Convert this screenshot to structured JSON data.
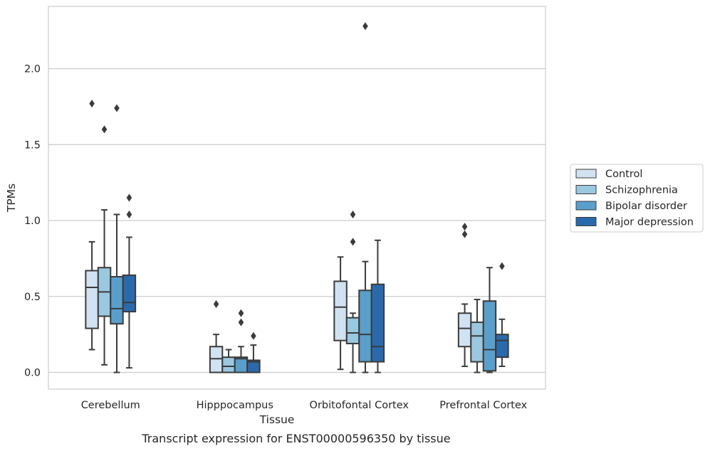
{
  "caption": "Transcript expression for ENST00000596350 by tissue",
  "chart_data": {
    "type": "box",
    "xlabel": "Tissue",
    "ylabel": "TPMs",
    "ylim": [
      -0.11,
      2.41
    ],
    "yticks": [
      0.0,
      0.5,
      1.0,
      1.5,
      2.0
    ],
    "ytick_labels": [
      "0.0",
      "0.5",
      "1.0",
      "1.5",
      "2.0"
    ],
    "grid": "horizontal",
    "categories": [
      "Cerebellum",
      "Hipppocampus",
      "Orbitofontal Cortex",
      "Prefrontal Cortex"
    ],
    "legend_position": "right",
    "series": [
      {
        "name": "Control",
        "color": "#d1e2f2",
        "boxes": [
          {
            "whisker_low": 0.15,
            "q1": 0.29,
            "median": 0.56,
            "q3": 0.67,
            "whisker_high": 0.86,
            "outliers": [
              1.77
            ]
          },
          {
            "whisker_low": 0.0,
            "q1": 0.0,
            "median": 0.09,
            "q3": 0.17,
            "whisker_high": 0.25,
            "outliers": [
              0.45
            ]
          },
          {
            "whisker_low": 0.02,
            "q1": 0.21,
            "median": 0.43,
            "q3": 0.6,
            "whisker_high": 0.76,
            "outliers": []
          },
          {
            "whisker_low": 0.04,
            "q1": 0.17,
            "median": 0.29,
            "q3": 0.39,
            "whisker_high": 0.45,
            "outliers": [
              0.91,
              0.96
            ]
          }
        ]
      },
      {
        "name": "Schizophrenia",
        "color": "#9ac8e0",
        "boxes": [
          {
            "whisker_low": 0.05,
            "q1": 0.37,
            "median": 0.53,
            "q3": 0.69,
            "whisker_high": 1.07,
            "outliers": [
              1.6
            ]
          },
          {
            "whisker_low": 0.0,
            "q1": 0.0,
            "median": 0.04,
            "q3": 0.1,
            "whisker_high": 0.15,
            "outliers": []
          },
          {
            "whisker_low": 0.0,
            "q1": 0.19,
            "median": 0.26,
            "q3": 0.36,
            "whisker_high": 0.39,
            "outliers": [
              0.86,
              1.04
            ]
          },
          {
            "whisker_low": 0.0,
            "q1": 0.07,
            "median": 0.24,
            "q3": 0.33,
            "whisker_high": 0.48,
            "outliers": []
          }
        ]
      },
      {
        "name": "Bipolar disorder",
        "color": "#5a9fcc",
        "boxes": [
          {
            "whisker_low": 0.0,
            "q1": 0.32,
            "median": 0.42,
            "q3": 0.63,
            "whisker_high": 1.04,
            "outliers": [
              1.74
            ]
          },
          {
            "whisker_low": 0.0,
            "q1": 0.0,
            "median": 0.09,
            "q3": 0.1,
            "whisker_high": 0.17,
            "outliers": [
              0.33,
              0.39
            ]
          },
          {
            "whisker_low": 0.0,
            "q1": 0.07,
            "median": 0.25,
            "q3": 0.54,
            "whisker_high": 0.73,
            "outliers": [
              2.28
            ]
          },
          {
            "whisker_low": 0.0,
            "q1": 0.01,
            "median": 0.15,
            "q3": 0.47,
            "whisker_high": 0.69,
            "outliers": []
          }
        ]
      },
      {
        "name": "Major depression",
        "color": "#2a6aac",
        "boxes": [
          {
            "whisker_low": 0.03,
            "q1": 0.4,
            "median": 0.46,
            "q3": 0.64,
            "whisker_high": 0.89,
            "outliers": [
              1.04,
              1.15
            ]
          },
          {
            "whisker_low": 0.0,
            "q1": 0.0,
            "median": 0.07,
            "q3": 0.08,
            "whisker_high": 0.18,
            "outliers": [
              0.24
            ]
          },
          {
            "whisker_low": 0.0,
            "q1": 0.07,
            "median": 0.17,
            "q3": 0.58,
            "whisker_high": 0.87,
            "outliers": []
          },
          {
            "whisker_low": 0.04,
            "q1": 0.1,
            "median": 0.21,
            "q3": 0.25,
            "whisker_high": 0.35,
            "outliers": [
              0.7
            ]
          }
        ]
      }
    ]
  }
}
